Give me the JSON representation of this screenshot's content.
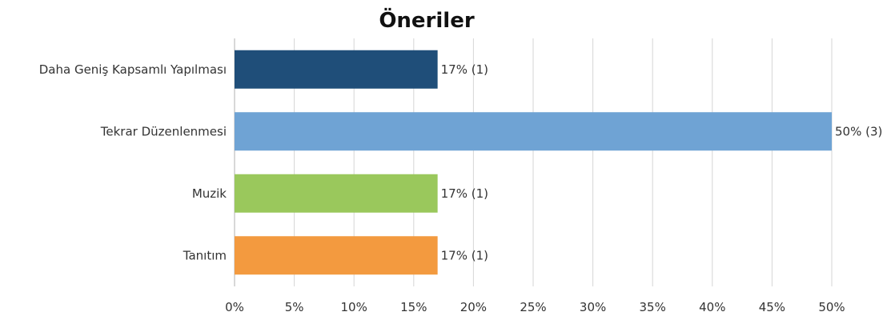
{
  "chart_data": {
    "type": "bar",
    "orientation": "horizontal",
    "title": "Öneriler",
    "categories": [
      "Daha Geniş Kapsamlı Yapılması",
      "Tekrar Düzenlenmesi",
      "Muzik",
      "Tanıtım"
    ],
    "values": [
      17,
      50,
      17,
      17
    ],
    "counts": [
      1,
      3,
      1,
      1
    ],
    "value_labels": [
      "17% (1)",
      "50% (3)",
      "17% (1)",
      "17% (1)"
    ],
    "colors": [
      "#1f4e79",
      "#6fa3d4",
      "#9ac85c",
      "#f39a3f"
    ],
    "xlim": [
      0,
      50
    ],
    "x_ticks": [
      "0%",
      "5%",
      "10%",
      "15%",
      "20%",
      "25%",
      "30%",
      "35%",
      "40%",
      "45%",
      "50%"
    ],
    "grid": true,
    "xlabel": "",
    "ylabel": ""
  }
}
